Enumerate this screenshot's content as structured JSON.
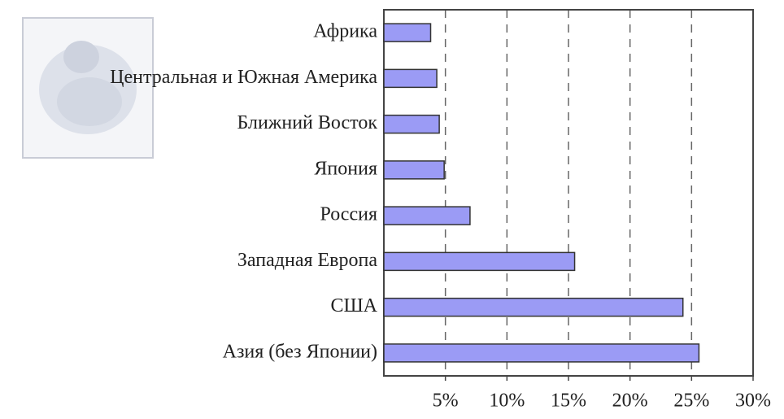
{
  "chart_data": {
    "type": "bar",
    "orientation": "horizontal",
    "categories": [
      "Африка",
      "Центральная и Южная Америка",
      "Ближний Восток",
      "Япония",
      "Россия",
      "Западная Европа",
      "США",
      "Азия (без Японии)"
    ],
    "values": [
      3.8,
      4.3,
      4.5,
      4.9,
      7.0,
      15.5,
      24.3,
      25.6
    ],
    "color": "#9b9bf5",
    "xlim": [
      0,
      30
    ],
    "xticks": [
      {
        "value": 5,
        "label": "5%"
      },
      {
        "value": 10,
        "label": "10%"
      },
      {
        "value": 15,
        "label": "15%"
      },
      {
        "value": 20,
        "label": "20%"
      },
      {
        "value": 25,
        "label": "25%"
      },
      {
        "value": 30,
        "label": "30%"
      }
    ],
    "grid": true
  }
}
